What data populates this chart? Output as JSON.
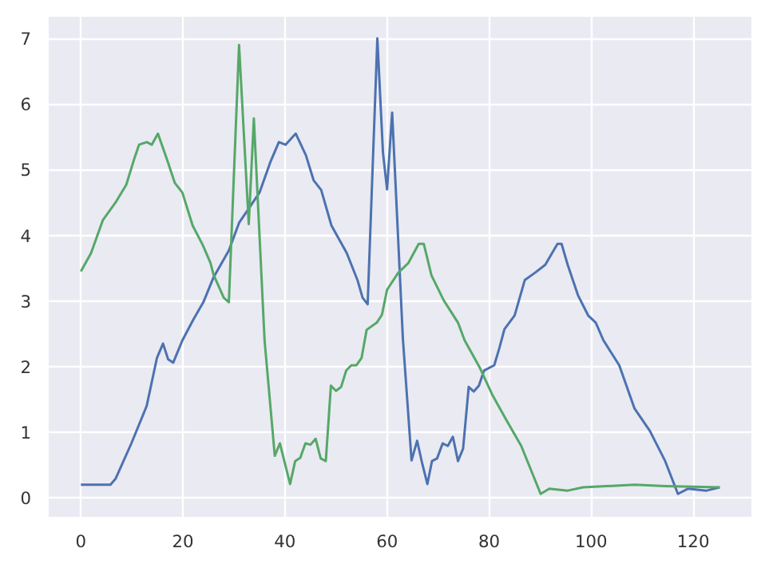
{
  "chart_data": {
    "type": "line",
    "xlim": [
      -6.3,
      131.4
    ],
    "ylim": [
      -0.29,
      7.33
    ],
    "xticks": [
      0,
      20,
      40,
      60,
      80,
      100,
      120
    ],
    "yticks": [
      0,
      1,
      2,
      3,
      4,
      5,
      6,
      7
    ],
    "grid": true,
    "marker": "none",
    "line_style": "solid",
    "series": [
      {
        "color": "#4c72b0",
        "x": [
          0,
          5.8,
          6.8,
          9.9,
          12.9,
          14.9,
          16.1,
          17.1,
          18.1,
          19.9,
          22,
          24,
          26,
          29,
          31,
          33,
          35,
          37.1,
          38.8,
          40.1,
          42.1,
          44.1,
          45.6,
          47.1,
          49.1,
          52.1,
          54.2,
          55.2,
          56.2,
          58.1,
          59.2,
          60,
          61,
          63.1,
          64.8,
          65.9,
          66.9,
          67.9,
          68.8,
          69.8,
          70.9,
          71.9,
          72.9,
          73.9,
          74.9,
          76,
          77,
          78,
          79,
          81,
          82,
          83,
          85,
          87,
          89,
          91,
          93.4,
          94.2,
          95.4,
          97.4,
          99.4,
          100.9,
          102.4,
          105.5,
          108.5,
          111.5,
          114.5,
          117,
          119,
          122.6,
          125.2
        ],
        "values": [
          0.2,
          0.2,
          0.29,
          0.83,
          1.4,
          2.13,
          2.35,
          2.11,
          2.06,
          2.4,
          2.71,
          2.98,
          3.36,
          3.77,
          4.19,
          4.42,
          4.65,
          5.11,
          5.42,
          5.38,
          5.55,
          5.22,
          4.84,
          4.69,
          4.15,
          3.73,
          3.32,
          3.05,
          2.95,
          7.0,
          5.26,
          4.7,
          5.87,
          2.43,
          0.57,
          0.87,
          0.52,
          0.21,
          0.56,
          0.6,
          0.83,
          0.79,
          0.93,
          0.56,
          0.75,
          1.69,
          1.62,
          1.71,
          1.94,
          2.02,
          2.28,
          2.57,
          2.78,
          3.32,
          3.43,
          3.55,
          3.87,
          3.87,
          3.55,
          3.09,
          2.78,
          2.67,
          2.4,
          2.02,
          1.36,
          1.02,
          0.56,
          0.06,
          0.14,
          0.11,
          0.16
        ]
      },
      {
        "color": "#55a868",
        "x": [
          0,
          2,
          4.3,
          6.8,
          8.9,
          10.4,
          11.4,
          12.9,
          13.9,
          15.1,
          16.9,
          18.4,
          19.9,
          21.9,
          23.9,
          25.4,
          26,
          28,
          29,
          31,
          32.9,
          33.9,
          36,
          38,
          39,
          40,
          41,
          42,
          43,
          44,
          45,
          46,
          47,
          48,
          49,
          50,
          51,
          52,
          53,
          54,
          55,
          56,
          58,
          59,
          60,
          62.2,
          64.2,
          66.2,
          67.2,
          68.7,
          71.1,
          73.9,
          75.2,
          78.2,
          80.7,
          83.2,
          86.3,
          90.1,
          91.8,
          95.4,
          98.4,
          108.5,
          114.5,
          125.2
        ],
        "values": [
          3.45,
          3.73,
          4.23,
          4.5,
          4.77,
          5.15,
          5.38,
          5.42,
          5.38,
          5.55,
          5.15,
          4.8,
          4.65,
          4.15,
          3.85,
          3.58,
          3.4,
          3.05,
          2.98,
          6.9,
          4.17,
          5.78,
          2.4,
          0.64,
          0.83,
          0.52,
          0.21,
          0.56,
          0.61,
          0.83,
          0.81,
          0.9,
          0.6,
          0.56,
          1.71,
          1.63,
          1.69,
          1.94,
          2.02,
          2.02,
          2.13,
          2.56,
          2.67,
          2.79,
          3.17,
          3.43,
          3.58,
          3.87,
          3.87,
          3.39,
          3.01,
          2.67,
          2.4,
          1.98,
          1.56,
          1.21,
          0.79,
          0.06,
          0.14,
          0.11,
          0.16,
          0.2,
          0.18,
          0.16
        ]
      }
    ]
  }
}
